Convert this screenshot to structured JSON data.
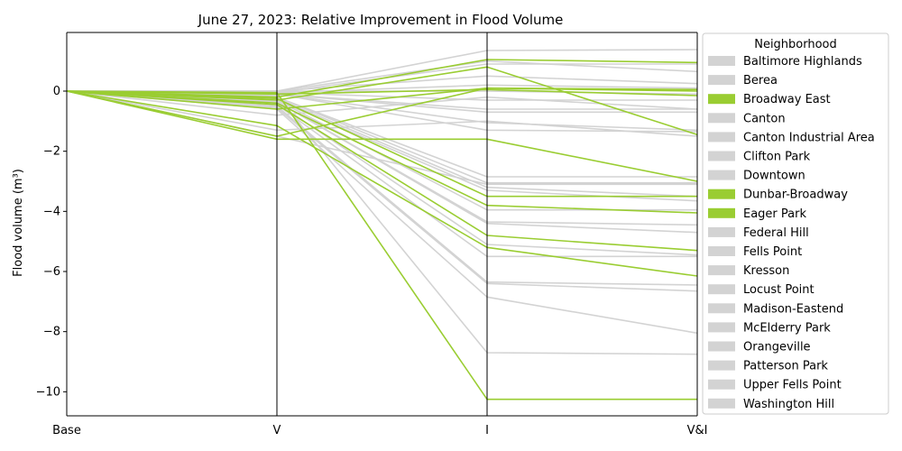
{
  "chart_data": {
    "type": "line",
    "title": "June 27, 2023: Relative Improvement in Flood Volume",
    "xlabel": "",
    "ylabel": "Flood volume (m³)",
    "categories": [
      "Base",
      "V",
      "I",
      "V&I"
    ],
    "ylim": [
      -10.8,
      1.95
    ],
    "yticks": [
      0,
      -2,
      -4,
      -6,
      -8,
      -10
    ],
    "ytick_labels": [
      "0",
      "−2",
      "−4",
      "−6",
      "−8",
      "−10"
    ],
    "grid": false,
    "legend": {
      "title": "Neighborhood",
      "placement": "outside-right",
      "highlight_color": "#9ACD32",
      "default_color": "#D3D3D3",
      "entries": [
        {
          "label": "Baltimore Highlands",
          "highlight": false
        },
        {
          "label": "Berea",
          "highlight": false
        },
        {
          "label": "Broadway East",
          "highlight": true
        },
        {
          "label": "Canton",
          "highlight": false
        },
        {
          "label": "Canton Industrial Area",
          "highlight": false
        },
        {
          "label": "Clifton Park",
          "highlight": false
        },
        {
          "label": "Downtown",
          "highlight": false
        },
        {
          "label": "Dunbar-Broadway",
          "highlight": true
        },
        {
          "label": "Eager Park",
          "highlight": true
        },
        {
          "label": "Federal Hill",
          "highlight": false
        },
        {
          "label": "Fells Point",
          "highlight": false
        },
        {
          "label": "Kresson",
          "highlight": false
        },
        {
          "label": "Locust Point",
          "highlight": false
        },
        {
          "label": "Madison-Eastend",
          "highlight": false
        },
        {
          "label": "McElderry Park",
          "highlight": false
        },
        {
          "label": "Orangeville",
          "highlight": false
        },
        {
          "label": "Patterson Park",
          "highlight": false
        },
        {
          "label": "Upper Fells Point",
          "highlight": false
        },
        {
          "label": "Washington Hill",
          "highlight": false
        }
      ]
    },
    "series_gray": [
      [
        0,
        0.0,
        1.35,
        1.38
      ],
      [
        0,
        0.0,
        1.0,
        0.65
      ],
      [
        0,
        -0.05,
        0.9,
        0.9
      ],
      [
        0,
        0.0,
        0.5,
        0.25
      ],
      [
        0,
        -0.05,
        0.2,
        0.1
      ],
      [
        0,
        0.0,
        0.0,
        -0.1
      ],
      [
        0,
        -0.05,
        -0.3,
        -0.3
      ],
      [
        0,
        -0.1,
        -0.6,
        -0.6
      ],
      [
        0,
        -0.1,
        -0.7,
        -0.7
      ],
      [
        0,
        -0.1,
        -1.05,
        -1.3
      ],
      [
        0,
        -0.1,
        -1.3,
        -1.35
      ],
      [
        0,
        -0.2,
        -2.85,
        -2.85
      ],
      [
        0,
        -0.2,
        -3.05,
        -3.05
      ],
      [
        0,
        -0.25,
        -3.2,
        -3.5
      ],
      [
        0,
        -0.3,
        -3.3,
        -3.65
      ],
      [
        0,
        -0.3,
        -3.95,
        -3.95
      ],
      [
        0,
        -0.35,
        -4.35,
        -4.45
      ],
      [
        0,
        -0.35,
        -4.4,
        -4.7
      ],
      [
        0,
        -0.4,
        -5.1,
        -5.45
      ],
      [
        0,
        -0.45,
        -5.5,
        -5.5
      ],
      [
        0,
        -0.5,
        -6.35,
        -6.45
      ],
      [
        0,
        -0.55,
        -6.4,
        -6.65
      ],
      [
        0,
        -0.6,
        -6.85,
        -8.05
      ],
      [
        0,
        -0.15,
        -8.7,
        -8.75
      ],
      [
        0,
        -1.5,
        -3.1,
        -3.1
      ],
      [
        0,
        -1.3,
        -1.0,
        -1.5
      ],
      [
        0,
        -0.8,
        -0.2,
        -0.6
      ]
    ],
    "series_green": [
      [
        0,
        -1.6,
        -1.6,
        -3.0
      ],
      [
        0,
        -1.5,
        0.1,
        0.05
      ],
      [
        0,
        -0.2,
        1.05,
        0.95
      ],
      [
        0,
        -0.3,
        0.8,
        -1.45
      ],
      [
        0,
        -0.1,
        0.05,
        -0.15
      ],
      [
        0,
        -0.25,
        -3.5,
        -3.5
      ],
      [
        0,
        -0.4,
        -3.8,
        -4.05
      ],
      [
        0,
        -0.45,
        -4.8,
        -5.3
      ],
      [
        0,
        -1.15,
        -5.2,
        -6.15
      ],
      [
        0,
        -0.05,
        -10.25,
        -10.25
      ],
      [
        0,
        -0.6,
        0.1,
        0.0
      ]
    ]
  }
}
